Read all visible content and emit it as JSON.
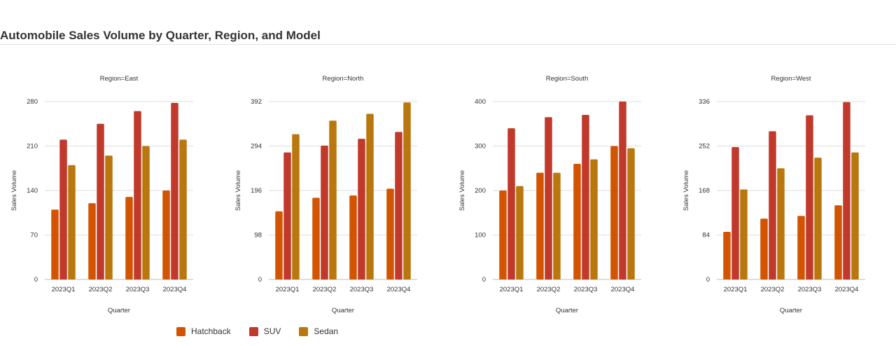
{
  "title": "Automobile Sales Volume by Quarter, Region, and Model",
  "colors": {
    "Hatchback": "#d35400",
    "SUV": "#c0392b",
    "Sedan": "#b9770e"
  },
  "legend": [
    "Hatchback",
    "SUV",
    "Sedan"
  ],
  "chart_data": [
    {
      "type": "bar",
      "title": "Region=East",
      "xlabel": "Quarter",
      "ylabel": "Sales Volume",
      "categories": [
        "2023Q1",
        "2023Q2",
        "2023Q3",
        "2023Q4"
      ],
      "yticks": [
        "0",
        "70",
        "140",
        "210",
        "280"
      ],
      "ylim": [
        0,
        280
      ],
      "grid": true,
      "series": [
        {
          "name": "Hatchback",
          "values": [
            110,
            120,
            130,
            140
          ]
        },
        {
          "name": "SUV",
          "values": [
            220,
            245,
            265,
            278
          ]
        },
        {
          "name": "Sedan",
          "values": [
            180,
            195,
            210,
            220
          ]
        }
      ]
    },
    {
      "type": "bar",
      "title": "Region=North",
      "xlabel": "Quarter",
      "ylabel": "Sales Volume",
      "categories": [
        "2023Q1",
        "2023Q2",
        "2023Q3",
        "2023Q4"
      ],
      "yticks": [
        "0",
        "98",
        "196",
        "294",
        "392"
      ],
      "ylim": [
        0,
        392
      ],
      "grid": true,
      "series": [
        {
          "name": "Hatchback",
          "values": [
            150,
            180,
            185,
            200
          ]
        },
        {
          "name": "SUV",
          "values": [
            280,
            295,
            310,
            325
          ]
        },
        {
          "name": "Sedan",
          "values": [
            320,
            350,
            365,
            390
          ]
        }
      ]
    },
    {
      "type": "bar",
      "title": "Region=South",
      "xlabel": "Quarter",
      "ylabel": "Sales Volume",
      "categories": [
        "2023Q1",
        "2023Q2",
        "2023Q3",
        "2023Q4"
      ],
      "yticks": [
        "0",
        "100",
        "200",
        "300",
        "400"
      ],
      "ylim": [
        0,
        400
      ],
      "grid": true,
      "series": [
        {
          "name": "Hatchback",
          "values": [
            200,
            240,
            260,
            300
          ]
        },
        {
          "name": "SUV",
          "values": [
            340,
            365,
            370,
            400
          ]
        },
        {
          "name": "Sedan",
          "values": [
            210,
            240,
            270,
            295
          ]
        }
      ]
    },
    {
      "type": "bar",
      "title": "Region=West",
      "xlabel": "Quarter",
      "ylabel": "Sales Volume",
      "categories": [
        "2023Q1",
        "2023Q2",
        "2023Q3",
        "2023Q4"
      ],
      "yticks": [
        "0",
        "84",
        "168",
        "252",
        "336"
      ],
      "ylim": [
        0,
        336
      ],
      "grid": true,
      "series": [
        {
          "name": "Hatchback",
          "values": [
            90,
            115,
            120,
            140
          ]
        },
        {
          "name": "SUV",
          "values": [
            250,
            280,
            310,
            335
          ]
        },
        {
          "name": "Sedan",
          "values": [
            170,
            210,
            230,
            240
          ]
        }
      ]
    }
  ]
}
